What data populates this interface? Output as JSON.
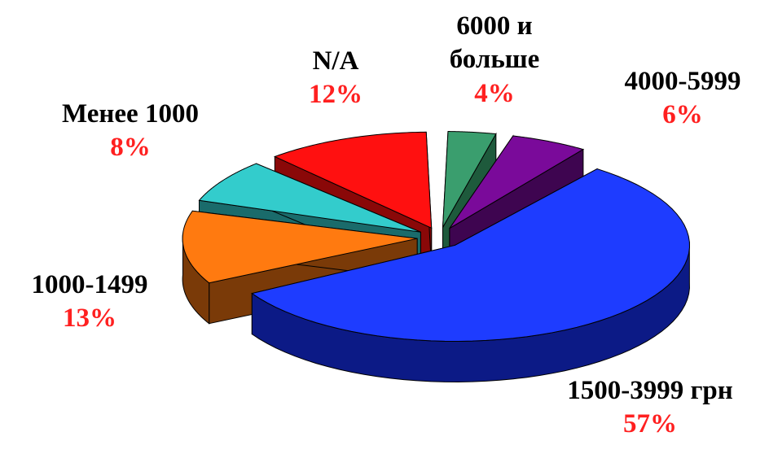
{
  "chart_data": {
    "type": "pie",
    "style": "3d-exploded",
    "title": "",
    "slices": [
      {
        "label": "6000 и больше",
        "label_lines": [
          "6000 и",
          "больше"
        ],
        "value": 4,
        "value_text": "4%",
        "color": "#3a9e6e",
        "side_color": "#1e5a3c"
      },
      {
        "label": "4000-5999",
        "label_lines": [
          "4000-5999"
        ],
        "value": 6,
        "value_text": "6%",
        "color": "#7a0a9a",
        "side_color": "#3e0550"
      },
      {
        "label": "1500-3999 грн",
        "label_lines": [
          "1500-3999 грн"
        ],
        "value": 57,
        "value_text": "57%",
        "color": "#1e3cff",
        "side_color": "#0c1a86"
      },
      {
        "label": "1000-1499",
        "label_lines": [
          "1000-1499"
        ],
        "value": 13,
        "value_text": "13%",
        "color": "#ff7a10",
        "side_color": "#7a3a08"
      },
      {
        "label": "Менее 1000",
        "label_lines": [
          "Менее 1000"
        ],
        "value": 8,
        "value_text": "8%",
        "color": "#33cccc",
        "side_color": "#1a6b6b"
      },
      {
        "label": "N/A",
        "label_lines": [
          "N/A"
        ],
        "value": 12,
        "value_text": "12%",
        "color": "#ff1010",
        "side_color": "#8a0808"
      }
    ],
    "percent_color": "#ff2020",
    "legend": "none"
  }
}
